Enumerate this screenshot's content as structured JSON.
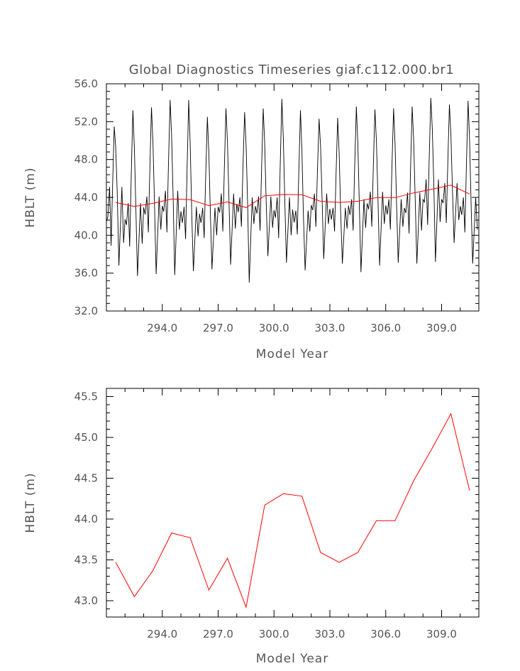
{
  "chart_data": [
    {
      "type": "line",
      "title": "Global Diagnostics Timeseries giaf.c112.000.br1",
      "xlabel": "Model Year",
      "ylabel": "HBLT (m)",
      "xlim": [
        291.0,
        311.0
      ],
      "ylim": [
        32.0,
        56.0
      ],
      "x_tick_labels": [
        "294.0",
        "297.0",
        "300.0",
        "303.0",
        "306.0",
        "309.0"
      ],
      "x_ticks": [
        294,
        297,
        300,
        303,
        306,
        309
      ],
      "y_tick_labels": [
        "32.0",
        "36.0",
        "40.0",
        "44.0",
        "48.0",
        "52.0",
        "56.0"
      ],
      "y_ticks": [
        32,
        36,
        40,
        44,
        48,
        52,
        56
      ],
      "colors": {
        "monthly": "#000000",
        "annual": "#ff0000"
      },
      "series": [
        {
          "key": "monthly",
          "monthly_start_year": 291.0,
          "annual_max": [
            51.5,
            53.2,
            53.5,
            54.3,
            54.3,
            52.5,
            53.4,
            53.0,
            53.4,
            54.4,
            53.2,
            52.3,
            52.4,
            53.6,
            53.3,
            53.4,
            53.6,
            54.5,
            53.8,
            54.2
          ],
          "annual_min": [
            36.8,
            35.7,
            35.9,
            35.8,
            36.2,
            36.4,
            36.9,
            35.0,
            37.8,
            37.1,
            36.3,
            37.5,
            37.0,
            36.1,
            36.8,
            37.1,
            37.0,
            37.2,
            39.2,
            37.0
          ],
          "annual_secondary_max": [
            45.1,
            43.4,
            44.1,
            44.7,
            43.0,
            42.9,
            44.4,
            44.0,
            44.1,
            44.0,
            42.6,
            44.4,
            42.9,
            43.8,
            44.6,
            43.8,
            44.5,
            45.9,
            45.5,
            44.0
          ],
          "annual_secondary_min": [
            38.9,
            38.8,
            40.3,
            40.3,
            39.6,
            39.7,
            40.4,
            40.9,
            40.5,
            39.7,
            40.1,
            40.9,
            40.4,
            40.5,
            40.9,
            40.6,
            40.2,
            41.1,
            41.3,
            40.3
          ]
        },
        {
          "key": "annual",
          "x": [
            291.5,
            292.5,
            293.5,
            294.5,
            295.5,
            296.5,
            297.5,
            298.5,
            299.5,
            300.5,
            301.5,
            302.5,
            303.5,
            304.5,
            305.5,
            306.5,
            307.5,
            308.5,
            309.5,
            310.5
          ],
          "y": [
            43.47,
            43.05,
            43.37,
            43.83,
            43.77,
            43.13,
            43.52,
            42.92,
            44.17,
            44.31,
            44.28,
            43.59,
            43.47,
            43.59,
            43.98,
            43.98,
            44.47,
            44.87,
            45.29,
            44.35
          ]
        }
      ]
    },
    {
      "type": "line",
      "xlabel": "Model Year",
      "ylabel": "HBLT (m)",
      "xlim": [
        291.0,
        311.0
      ],
      "ylim": [
        42.8,
        45.6
      ],
      "x_tick_labels": [
        "294.0",
        "297.0",
        "300.0",
        "303.0",
        "306.0",
        "309.0"
      ],
      "x_ticks": [
        294,
        297,
        300,
        303,
        306,
        309
      ],
      "y_tick_labels": [
        "43.0",
        "43.5",
        "44.0",
        "44.5",
        "45.0",
        "45.5"
      ],
      "y_ticks": [
        43.0,
        43.5,
        44.0,
        44.5,
        45.0,
        45.5
      ],
      "colors": {
        "annual": "#ff0000"
      },
      "series": [
        {
          "key": "annual",
          "x": [
            291.5,
            292.5,
            293.5,
            294.5,
            295.5,
            296.5,
            297.5,
            298.5,
            299.5,
            300.5,
            301.5,
            302.5,
            303.5,
            304.5,
            305.5,
            306.5,
            307.5,
            308.5,
            309.5,
            310.5
          ],
          "y": [
            43.47,
            43.05,
            43.37,
            43.83,
            43.77,
            43.13,
            43.52,
            42.92,
            44.17,
            44.31,
            44.28,
            43.59,
            43.47,
            43.59,
            43.98,
            43.98,
            44.47,
            44.87,
            45.29,
            44.35
          ]
        }
      ]
    }
  ]
}
